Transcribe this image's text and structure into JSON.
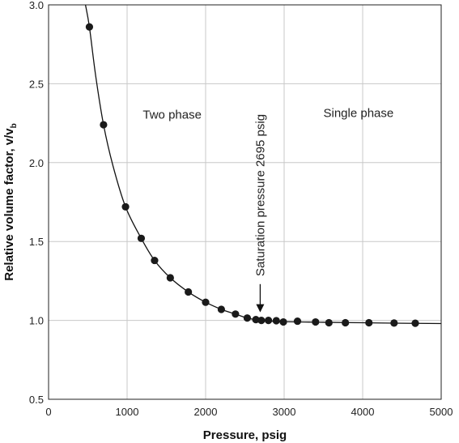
{
  "chart_data": {
    "type": "scatter",
    "xlabel": "Pressure, psig",
    "ylabel_main": "Relative volume factor, v/v",
    "ylabel_sub": "b",
    "xlim": [
      0,
      5000
    ],
    "ylim": [
      0.5,
      3.0
    ],
    "x_ticks": [
      0,
      1000,
      2000,
      3000,
      4000,
      5000
    ],
    "y_ticks": [
      0.5,
      1.0,
      1.5,
      2.0,
      2.5,
      3.0
    ],
    "x_tick_labels": [
      "0",
      "1000",
      "2000",
      "3000",
      "4000",
      "5000"
    ],
    "y_tick_labels": [
      "0.5",
      "1.0",
      "1.5",
      "2.0",
      "2.5",
      "3.0"
    ],
    "grid": true,
    "points": [
      {
        "x": 520,
        "y": 2.86
      },
      {
        "x": 700,
        "y": 2.24
      },
      {
        "x": 980,
        "y": 1.72
      },
      {
        "x": 1180,
        "y": 1.52
      },
      {
        "x": 1350,
        "y": 1.38
      },
      {
        "x": 1550,
        "y": 1.27
      },
      {
        "x": 1780,
        "y": 1.18
      },
      {
        "x": 2000,
        "y": 1.115
      },
      {
        "x": 2200,
        "y": 1.07
      },
      {
        "x": 2380,
        "y": 1.04
      },
      {
        "x": 2530,
        "y": 1.015
      },
      {
        "x": 2640,
        "y": 1.005
      },
      {
        "x": 2710,
        "y": 1.0
      },
      {
        "x": 2800,
        "y": 1.0
      },
      {
        "x": 2900,
        "y": 0.998
      },
      {
        "x": 2990,
        "y": 0.99
      },
      {
        "x": 3170,
        "y": 0.995
      },
      {
        "x": 3400,
        "y": 0.99
      },
      {
        "x": 3570,
        "y": 0.985
      },
      {
        "x": 3780,
        "y": 0.985
      },
      {
        "x": 4080,
        "y": 0.985
      },
      {
        "x": 4400,
        "y": 0.983
      },
      {
        "x": 4670,
        "y": 0.982
      }
    ],
    "curve": [
      {
        "x": 470,
        "y": 3.0
      },
      {
        "x": 520,
        "y": 2.86
      },
      {
        "x": 600,
        "y": 2.55
      },
      {
        "x": 700,
        "y": 2.24
      },
      {
        "x": 820,
        "y": 1.98
      },
      {
        "x": 980,
        "y": 1.72
      },
      {
        "x": 1180,
        "y": 1.52
      },
      {
        "x": 1350,
        "y": 1.38
      },
      {
        "x": 1550,
        "y": 1.27
      },
      {
        "x": 1780,
        "y": 1.18
      },
      {
        "x": 2000,
        "y": 1.115
      },
      {
        "x": 2200,
        "y": 1.07
      },
      {
        "x": 2380,
        "y": 1.04
      },
      {
        "x": 2530,
        "y": 1.015
      },
      {
        "x": 2695,
        "y": 1.0
      },
      {
        "x": 3000,
        "y": 0.992
      },
      {
        "x": 3500,
        "y": 0.988
      },
      {
        "x": 4000,
        "y": 0.985
      },
      {
        "x": 4500,
        "y": 0.982
      },
      {
        "x": 5000,
        "y": 0.98
      }
    ],
    "annotations": {
      "two_phase": "Two phase",
      "single_phase": "Single phase",
      "saturation": "Saturation pressure 2695 psig",
      "saturation_x": 2695,
      "saturation_y": 1.0
    }
  }
}
